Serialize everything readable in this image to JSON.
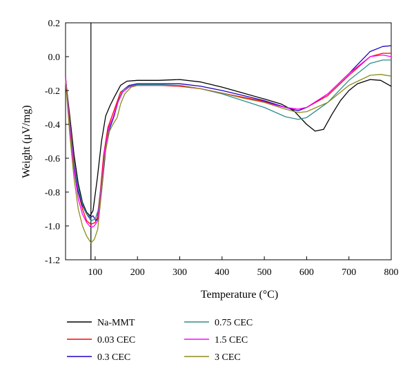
{
  "chart_data": {
    "type": "line",
    "title": "",
    "xlabel": "Temperature (°C)",
    "ylabel": "Weight (μV/mg)",
    "xlim": [
      30,
      800
    ],
    "ylim": [
      -1.2,
      0.2
    ],
    "xticks": [
      100,
      200,
      300,
      400,
      500,
      600,
      700,
      800
    ],
    "yticks": [
      -1.2,
      -1.0,
      -0.8,
      -0.6,
      -0.4,
      -0.2,
      0.0,
      0.2
    ],
    "grid": false,
    "legend": "bottom",
    "vertical_line_x": 90,
    "series": [
      {
        "name": "Na-MMT",
        "color": "#000000",
        "points": [
          [
            30,
            -0.13
          ],
          [
            40,
            -0.35
          ],
          [
            50,
            -0.58
          ],
          [
            60,
            -0.75
          ],
          [
            70,
            -0.86
          ],
          [
            80,
            -0.92
          ],
          [
            88,
            -0.94
          ],
          [
            95,
            -0.91
          ],
          [
            105,
            -0.72
          ],
          [
            115,
            -0.5
          ],
          [
            125,
            -0.35
          ],
          [
            135,
            -0.29
          ],
          [
            145,
            -0.24
          ],
          [
            160,
            -0.17
          ],
          [
            175,
            -0.145
          ],
          [
            200,
            -0.14
          ],
          [
            250,
            -0.14
          ],
          [
            300,
            -0.135
          ],
          [
            350,
            -0.15
          ],
          [
            400,
            -0.18
          ],
          [
            450,
            -0.215
          ],
          [
            500,
            -0.25
          ],
          [
            540,
            -0.28
          ],
          [
            570,
            -0.32
          ],
          [
            600,
            -0.4
          ],
          [
            620,
            -0.44
          ],
          [
            640,
            -0.43
          ],
          [
            660,
            -0.34
          ],
          [
            680,
            -0.26
          ],
          [
            700,
            -0.2
          ],
          [
            720,
            -0.16
          ],
          [
            750,
            -0.135
          ],
          [
            775,
            -0.14
          ],
          [
            800,
            -0.175
          ]
        ]
      },
      {
        "name": "0.03 CEC",
        "color": "#ff0000",
        "points": [
          [
            30,
            -0.12
          ],
          [
            40,
            -0.38
          ],
          [
            50,
            -0.62
          ],
          [
            60,
            -0.8
          ],
          [
            70,
            -0.9
          ],
          [
            80,
            -0.97
          ],
          [
            90,
            -0.99
          ],
          [
            100,
            -0.98
          ],
          [
            105,
            -0.95
          ],
          [
            112,
            -0.8
          ],
          [
            120,
            -0.58
          ],
          [
            130,
            -0.42
          ],
          [
            140,
            -0.35
          ],
          [
            150,
            -0.28
          ],
          [
            160,
            -0.21
          ],
          [
            175,
            -0.18
          ],
          [
            200,
            -0.17
          ],
          [
            250,
            -0.17
          ],
          [
            300,
            -0.175
          ],
          [
            350,
            -0.19
          ],
          [
            400,
            -0.215
          ],
          [
            450,
            -0.24
          ],
          [
            500,
            -0.265
          ],
          [
            550,
            -0.3
          ],
          [
            580,
            -0.31
          ],
          [
            600,
            -0.3
          ],
          [
            650,
            -0.23
          ],
          [
            700,
            -0.11
          ],
          [
            750,
            0.0
          ],
          [
            780,
            0.02
          ],
          [
            800,
            0.02
          ]
        ]
      },
      {
        "name": "0.3 CEC",
        "color": "#1e00c0",
        "points": [
          [
            30,
            -0.12
          ],
          [
            40,
            -0.4
          ],
          [
            50,
            -0.64
          ],
          [
            60,
            -0.8
          ],
          [
            70,
            -0.88
          ],
          [
            80,
            -0.93
          ],
          [
            88,
            -0.95
          ],
          [
            95,
            -0.94
          ],
          [
            102,
            -0.97
          ],
          [
            108,
            -0.95
          ],
          [
            115,
            -0.8
          ],
          [
            125,
            -0.55
          ],
          [
            135,
            -0.42
          ],
          [
            145,
            -0.35
          ],
          [
            155,
            -0.26
          ],
          [
            165,
            -0.2
          ],
          [
            180,
            -0.17
          ],
          [
            200,
            -0.16
          ],
          [
            250,
            -0.16
          ],
          [
            300,
            -0.16
          ],
          [
            350,
            -0.175
          ],
          [
            400,
            -0.2
          ],
          [
            450,
            -0.23
          ],
          [
            500,
            -0.26
          ],
          [
            550,
            -0.3
          ],
          [
            580,
            -0.32
          ],
          [
            600,
            -0.3
          ],
          [
            650,
            -0.22
          ],
          [
            700,
            -0.1
          ],
          [
            750,
            0.03
          ],
          [
            780,
            0.06
          ],
          [
            800,
            0.065
          ]
        ]
      },
      {
        "name": "0.75 CEC",
        "color": "#2e8b8b",
        "points": [
          [
            30,
            -0.13
          ],
          [
            40,
            -0.39
          ],
          [
            50,
            -0.63
          ],
          [
            60,
            -0.78
          ],
          [
            70,
            -0.87
          ],
          [
            80,
            -0.93
          ],
          [
            90,
            -0.97
          ],
          [
            100,
            -0.96
          ],
          [
            108,
            -0.9
          ],
          [
            115,
            -0.75
          ],
          [
            125,
            -0.52
          ],
          [
            135,
            -0.41
          ],
          [
            145,
            -0.34
          ],
          [
            155,
            -0.26
          ],
          [
            165,
            -0.2
          ],
          [
            180,
            -0.175
          ],
          [
            200,
            -0.165
          ],
          [
            250,
            -0.165
          ],
          [
            300,
            -0.17
          ],
          [
            350,
            -0.19
          ],
          [
            400,
            -0.22
          ],
          [
            450,
            -0.26
          ],
          [
            500,
            -0.3
          ],
          [
            550,
            -0.355
          ],
          [
            580,
            -0.37
          ],
          [
            600,
            -0.36
          ],
          [
            650,
            -0.27
          ],
          [
            700,
            -0.14
          ],
          [
            750,
            -0.04
          ],
          [
            780,
            -0.02
          ],
          [
            800,
            -0.02
          ]
        ]
      },
      {
        "name": "1.5 CEC",
        "color": "#ff00ff",
        "points": [
          [
            30,
            -0.12
          ],
          [
            40,
            -0.42
          ],
          [
            50,
            -0.67
          ],
          [
            60,
            -0.84
          ],
          [
            70,
            -0.93
          ],
          [
            80,
            -0.98
          ],
          [
            90,
            -1.01
          ],
          [
            98,
            -1.0
          ],
          [
            106,
            -0.97
          ],
          [
            113,
            -0.82
          ],
          [
            122,
            -0.56
          ],
          [
            132,
            -0.42
          ],
          [
            142,
            -0.36
          ],
          [
            152,
            -0.28
          ],
          [
            165,
            -0.21
          ],
          [
            180,
            -0.18
          ],
          [
            200,
            -0.17
          ],
          [
            250,
            -0.17
          ],
          [
            300,
            -0.17
          ],
          [
            350,
            -0.19
          ],
          [
            400,
            -0.215
          ],
          [
            450,
            -0.245
          ],
          [
            500,
            -0.27
          ],
          [
            550,
            -0.3
          ],
          [
            580,
            -0.31
          ],
          [
            600,
            -0.3
          ],
          [
            650,
            -0.22
          ],
          [
            700,
            -0.1
          ],
          [
            750,
            0.0
          ],
          [
            780,
            0.01
          ],
          [
            800,
            0.0
          ]
        ]
      },
      {
        "name": "3 CEC",
        "color": "#8b8b1a",
        "points": [
          [
            30,
            -0.14
          ],
          [
            40,
            -0.46
          ],
          [
            50,
            -0.72
          ],
          [
            60,
            -0.9
          ],
          [
            70,
            -1.0
          ],
          [
            80,
            -1.06
          ],
          [
            90,
            -1.1
          ],
          [
            98,
            -1.08
          ],
          [
            106,
            -1.02
          ],
          [
            113,
            -0.85
          ],
          [
            122,
            -0.6
          ],
          [
            132,
            -0.45
          ],
          [
            142,
            -0.4
          ],
          [
            152,
            -0.36
          ],
          [
            160,
            -0.28
          ],
          [
            170,
            -0.22
          ],
          [
            185,
            -0.18
          ],
          [
            200,
            -0.17
          ],
          [
            250,
            -0.17
          ],
          [
            300,
            -0.17
          ],
          [
            350,
            -0.19
          ],
          [
            400,
            -0.215
          ],
          [
            450,
            -0.245
          ],
          [
            500,
            -0.27
          ],
          [
            550,
            -0.31
          ],
          [
            580,
            -0.33
          ],
          [
            600,
            -0.325
          ],
          [
            650,
            -0.27
          ],
          [
            700,
            -0.17
          ],
          [
            750,
            -0.11
          ],
          [
            775,
            -0.105
          ],
          [
            800,
            -0.115
          ]
        ]
      }
    ]
  }
}
